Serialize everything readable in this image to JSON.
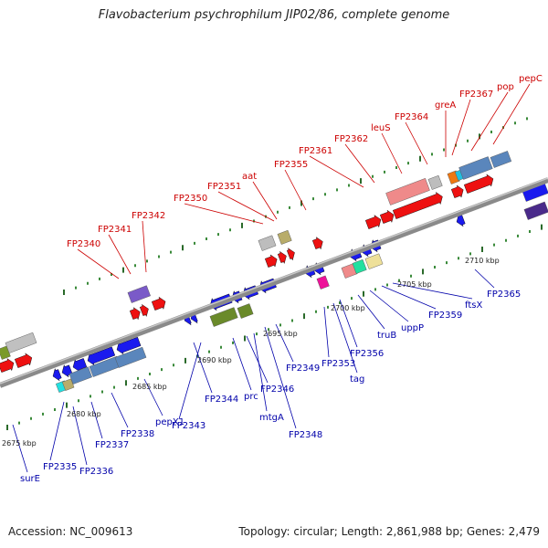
{
  "title": "Flavobacterium psychrophilum JIP02/86, complete genome",
  "footer": {
    "accession": "Accession: NC_009613",
    "summary": "Topology: circular; Length: 2,861,988 bp; Genes: 2,479"
  },
  "colors": {
    "backbone": "#888888",
    "upper_label": "#cc0000",
    "lower_label": "#0000aa",
    "tick": "#226622"
  },
  "kbp_labels": [
    "2675 kbp",
    "2680 kbp",
    "2685 kbp",
    "2690 kbp",
    "2695 kbp",
    "2700 kbp",
    "2705 kbp",
    "2710 kbp"
  ],
  "upper_genes": [
    "FP2340",
    "FP2341",
    "FP2342",
    "FP2350",
    "FP2351",
    "aat",
    "FP2355",
    "FP2361",
    "FP2362",
    "leuS",
    "FP2364",
    "greA",
    "FP2367",
    "pop",
    "pepC"
  ],
  "lower_genes": [
    "surE",
    "FP2335",
    "FP2336",
    "FP2337",
    "FP2338",
    "pepX1",
    "FP2343",
    "FP2344",
    "prc",
    "FP2346",
    "mtgA",
    "FP2348",
    "FP2349",
    "FP2353",
    "tag",
    "FP2356",
    "truB",
    "uppP",
    "FP2359",
    "ftsX",
    "FP2365"
  ]
}
